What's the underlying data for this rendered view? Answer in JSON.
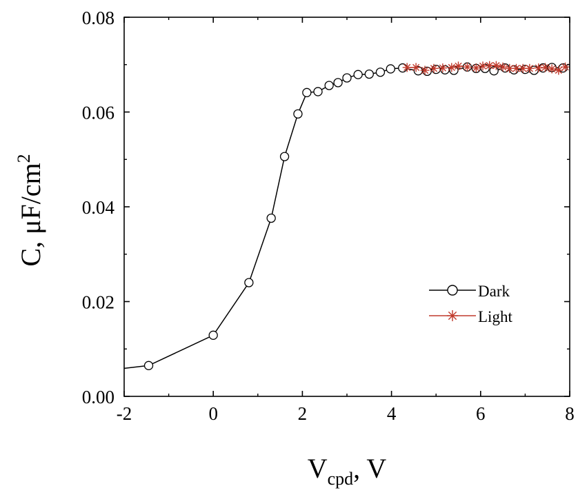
{
  "chart_data": {
    "type": "line",
    "title": "",
    "xlabel": "V",
    "xlabel_sub": "cpd",
    "xlabel_suffix": ", V",
    "ylabel": "C, μF/cm",
    "ylabel_sup": "2",
    "xlim": [
      -2,
      8
    ],
    "ylim": [
      0,
      0.08
    ],
    "xticks": [
      "-2",
      "0",
      "2",
      "4",
      "6",
      "8"
    ],
    "yticks": [
      "0.00",
      "0.02",
      "0.04",
      "0.06",
      "0.08"
    ],
    "grid": false,
    "legend_position": "lower-right",
    "series": [
      {
        "name": "Dark",
        "color": "#000000",
        "marker": "circle",
        "x": [
          -2.0,
          -1.45,
          0.0,
          0.8,
          1.3,
          1.6,
          1.9,
          2.1,
          2.35,
          2.6,
          2.8,
          3.0,
          3.25,
          3.5,
          3.75,
          3.98,
          4.25,
          4.6,
          4.8,
          5.0,
          5.2,
          5.4,
          5.7,
          5.9,
          6.1,
          6.3,
          6.55,
          6.75,
          7.0,
          7.2,
          7.4,
          7.6,
          7.85
        ],
        "y": [
          0.0059,
          0.0065,
          0.0129,
          0.024,
          0.0376,
          0.0506,
          0.0596,
          0.0641,
          0.0643,
          0.0656,
          0.0662,
          0.0672,
          0.0679,
          0.068,
          0.0684,
          0.0691,
          0.0693,
          0.0687,
          0.0686,
          0.069,
          0.0689,
          0.0688,
          0.0695,
          0.0692,
          0.0692,
          0.0687,
          0.0693,
          0.0689,
          0.069,
          0.0688,
          0.0693,
          0.0694,
          0.0693
        ]
      },
      {
        "name": "Light",
        "color": "#c0392b",
        "marker": "asterisk",
        "x": [
          4.35,
          4.55,
          4.75,
          4.95,
          5.15,
          5.35,
          5.5,
          5.7,
          5.9,
          6.05,
          6.2,
          6.35,
          6.5,
          6.65,
          6.8,
          6.95,
          7.1,
          7.3,
          7.45,
          7.6,
          7.75,
          7.9
        ],
        "y": [
          0.0694,
          0.0694,
          0.0688,
          0.0692,
          0.0693,
          0.0694,
          0.0697,
          0.0695,
          0.0693,
          0.0697,
          0.0698,
          0.0698,
          0.0695,
          0.0692,
          0.0692,
          0.0692,
          0.0692,
          0.0693,
          0.0694,
          0.0691,
          0.0688,
          0.0695
        ]
      }
    ]
  }
}
